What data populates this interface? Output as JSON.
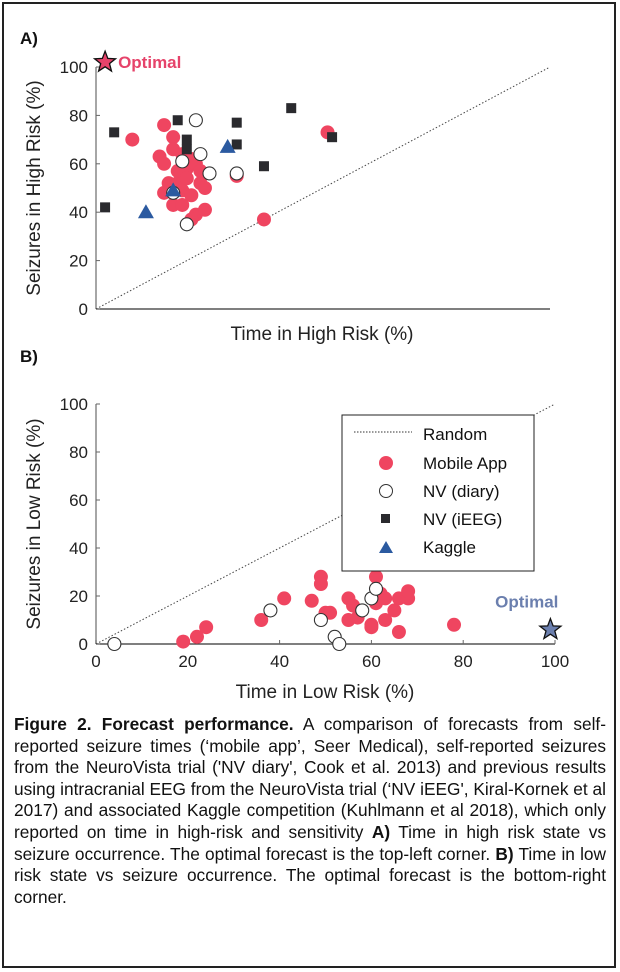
{
  "chart_data": [
    {
      "panel_label": "A)",
      "type": "scatter",
      "xlabel": "Time in High Risk (%)",
      "ylabel": "Seizures in High Risk (%)",
      "xlim": [
        0,
        100
      ],
      "ylim": [
        0,
        100
      ],
      "yticks": [
        "0",
        "20",
        "40",
        "60",
        "80",
        "100"
      ],
      "xticks": [],
      "grid": false,
      "reference_line": {
        "name": "Random",
        "points": [
          [
            0,
            0
          ],
          [
            100,
            100
          ]
        ],
        "style": "dotted"
      },
      "optimal": {
        "label": "Optimal",
        "x": 2,
        "y": 102,
        "color": "#e6436a"
      },
      "series": [
        {
          "name": "Mobile App",
          "marker": "circle",
          "color": "#ef4560",
          "points": [
            [
              8,
              70
            ],
            [
              15,
              76
            ],
            [
              17,
              71
            ],
            [
              14,
              63
            ],
            [
              15,
              60
            ],
            [
              17,
              66
            ],
            [
              19,
              64
            ],
            [
              21,
              62
            ],
            [
              20,
              58
            ],
            [
              22,
              60
            ],
            [
              23,
              57
            ],
            [
              16,
              52
            ],
            [
              18,
              52
            ],
            [
              15,
              48
            ],
            [
              19,
              49
            ],
            [
              21,
              47
            ],
            [
              17,
              43
            ],
            [
              19,
              43
            ],
            [
              23,
              52
            ],
            [
              24,
              50
            ],
            [
              22,
              39
            ],
            [
              21,
              37
            ],
            [
              24,
              41
            ],
            [
              31,
              55
            ],
            [
              51,
              73
            ],
            [
              37,
              37
            ],
            [
              18,
              57
            ],
            [
              20,
              54
            ]
          ]
        },
        {
          "name": "NV (diary)",
          "marker": "circle-open",
          "color": "#ffffff",
          "points": [
            [
              22,
              78
            ],
            [
              19,
              61
            ],
            [
              23,
              64
            ],
            [
              25,
              56
            ],
            [
              31,
              56
            ],
            [
              17,
              48
            ],
            [
              20,
              35
            ]
          ]
        },
        {
          "name": "NV (iEEG)",
          "marker": "square",
          "color": "#2a2a2e",
          "points": [
            [
              2,
              42
            ],
            [
              4,
              73
            ],
            [
              18,
              78
            ],
            [
              20,
              70
            ],
            [
              20,
              66
            ],
            [
              31,
              77
            ],
            [
              31,
              68
            ],
            [
              37,
              59
            ],
            [
              43,
              83
            ],
            [
              52,
              71
            ]
          ]
        },
        {
          "name": "Kaggle",
          "marker": "triangle",
          "color": "#2b5aa0",
          "points": [
            [
              11,
              40
            ],
            [
              17,
              49
            ],
            [
              29,
              67
            ]
          ]
        }
      ]
    },
    {
      "panel_label": "B)",
      "type": "scatter",
      "xlabel": "Time in Low Risk (%)",
      "ylabel": "Seizures in Low Risk (%)",
      "xlim": [
        0,
        100
      ],
      "ylim": [
        0,
        100
      ],
      "xticks": [
        "0",
        "20",
        "40",
        "60",
        "80",
        "100"
      ],
      "yticks": [
        "0",
        "20",
        "40",
        "60",
        "80",
        "100"
      ],
      "grid": false,
      "reference_line": {
        "name": "Random",
        "points": [
          [
            0,
            0
          ],
          [
            100,
            100
          ]
        ],
        "style": "dotted"
      },
      "optimal": {
        "label": "Optimal",
        "x": 99,
        "y": 6,
        "color": "#6b7fae"
      },
      "legend": {
        "placement": "top-right",
        "entries": [
          {
            "label": "Random",
            "marker": "dotted-line"
          },
          {
            "label": "Mobile App",
            "marker": "circle"
          },
          {
            "label": "NV (diary)",
            "marker": "circle-open"
          },
          {
            "label": "NV (iEEG)",
            "marker": "square"
          },
          {
            "label": "Kaggle",
            "marker": "triangle"
          }
        ]
      },
      "series": [
        {
          "name": "Mobile App",
          "marker": "circle",
          "color": "#ef4560",
          "points": [
            [
              19,
              1
            ],
            [
              22,
              3
            ],
            [
              24,
              7
            ],
            [
              36,
              10
            ],
            [
              41,
              19
            ],
            [
              47,
              18
            ],
            [
              49,
              28
            ],
            [
              49,
              25
            ],
            [
              50,
              13
            ],
            [
              51,
              13
            ],
            [
              55,
              19
            ],
            [
              56,
              16
            ],
            [
              55,
              10
            ],
            [
              57,
              11
            ],
            [
              61,
              28
            ],
            [
              62,
              21
            ],
            [
              61,
              17
            ],
            [
              63,
              19
            ],
            [
              60,
              8
            ],
            [
              60,
              7
            ],
            [
              63,
              10
            ],
            [
              65,
              14
            ],
            [
              66,
              19
            ],
            [
              68,
              19
            ],
            [
              68,
              22
            ],
            [
              66,
              5
            ],
            [
              78,
              8
            ]
          ]
        },
        {
          "name": "NV (diary)",
          "marker": "circle-open",
          "color": "#ffffff",
          "points": [
            [
              4,
              0
            ],
            [
              38,
              14
            ],
            [
              49,
              10
            ],
            [
              52,
              3
            ],
            [
              53,
              0
            ],
            [
              58,
              14
            ],
            [
              60,
              19
            ],
            [
              61,
              23
            ]
          ]
        },
        {
          "name": "NV (iEEG)",
          "marker": "square",
          "color": "#2a2a2e",
          "points": []
        },
        {
          "name": "Kaggle",
          "marker": "triangle",
          "color": "#2b5aa0",
          "points": []
        }
      ]
    }
  ],
  "caption": {
    "title": "Figure 2. Forecast performance.",
    "intro": " A comparison of forecasts from self-reported seizure times (‘mobile app’, Seer Medical), self-reported seizures from the NeuroVista trial ('NV diary', Cook et al. 2013) and previous results using intracranial EEG from the NeuroVista trial (‘NV iEEG', Kiral-Kornek et al 2017) and associated Kaggle competition (Kuhlmann et al 2018), which only reported on time in high-risk and sensitivity ",
    "a_label": "A)",
    "a_text": " Time in high risk state vs seizure occurrence. The optimal forecast is the top-left corner. ",
    "b_label": "B)",
    "b_text": " Time in low risk state vs seizure occurrence. The optimal forecast is the bottom-right corner."
  }
}
